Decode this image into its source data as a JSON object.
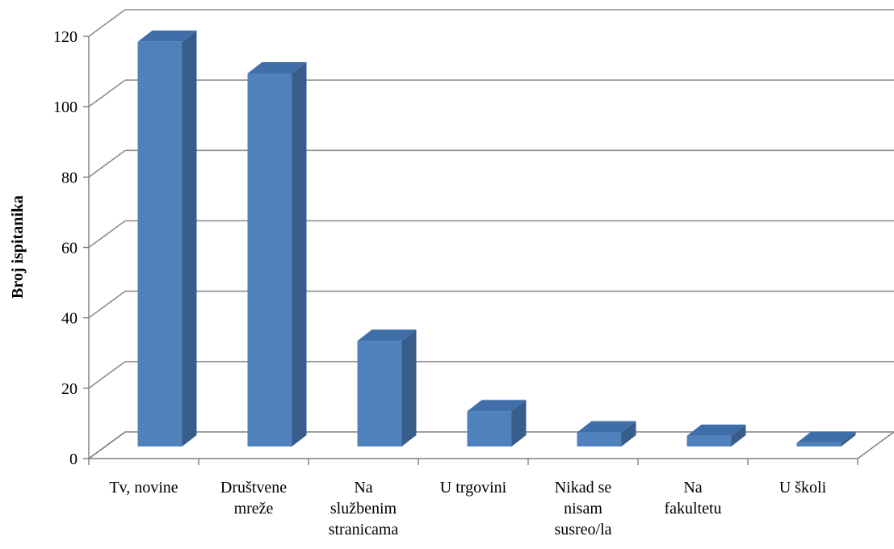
{
  "chart_data": {
    "type": "bar",
    "ylabel": "Broj ispitanika",
    "ylim": [
      0,
      120
    ],
    "yticks": [
      0,
      20,
      40,
      60,
      80,
      100,
      120
    ],
    "grid": true,
    "legend": "none",
    "categories": [
      [
        "Tv, novine"
      ],
      [
        "Društvene",
        "mreže"
      ],
      [
        "Na",
        "službenim",
        "stranicama"
      ],
      [
        "U trgovini"
      ],
      [
        "Nikad se",
        "nisam",
        "susreo/la"
      ],
      [
        "Na",
        "fakultetu"
      ],
      [
        "U školi"
      ]
    ],
    "values": [
      115,
      106,
      30,
      10,
      4,
      3,
      1
    ],
    "colors": {
      "bar_front": "#4f81bd",
      "bar_side": "#385d8a",
      "bar_top": "#3f6ea8",
      "gridline": "#8c8c8c",
      "axis": "#7f7f7f",
      "text": "#000000"
    }
  }
}
